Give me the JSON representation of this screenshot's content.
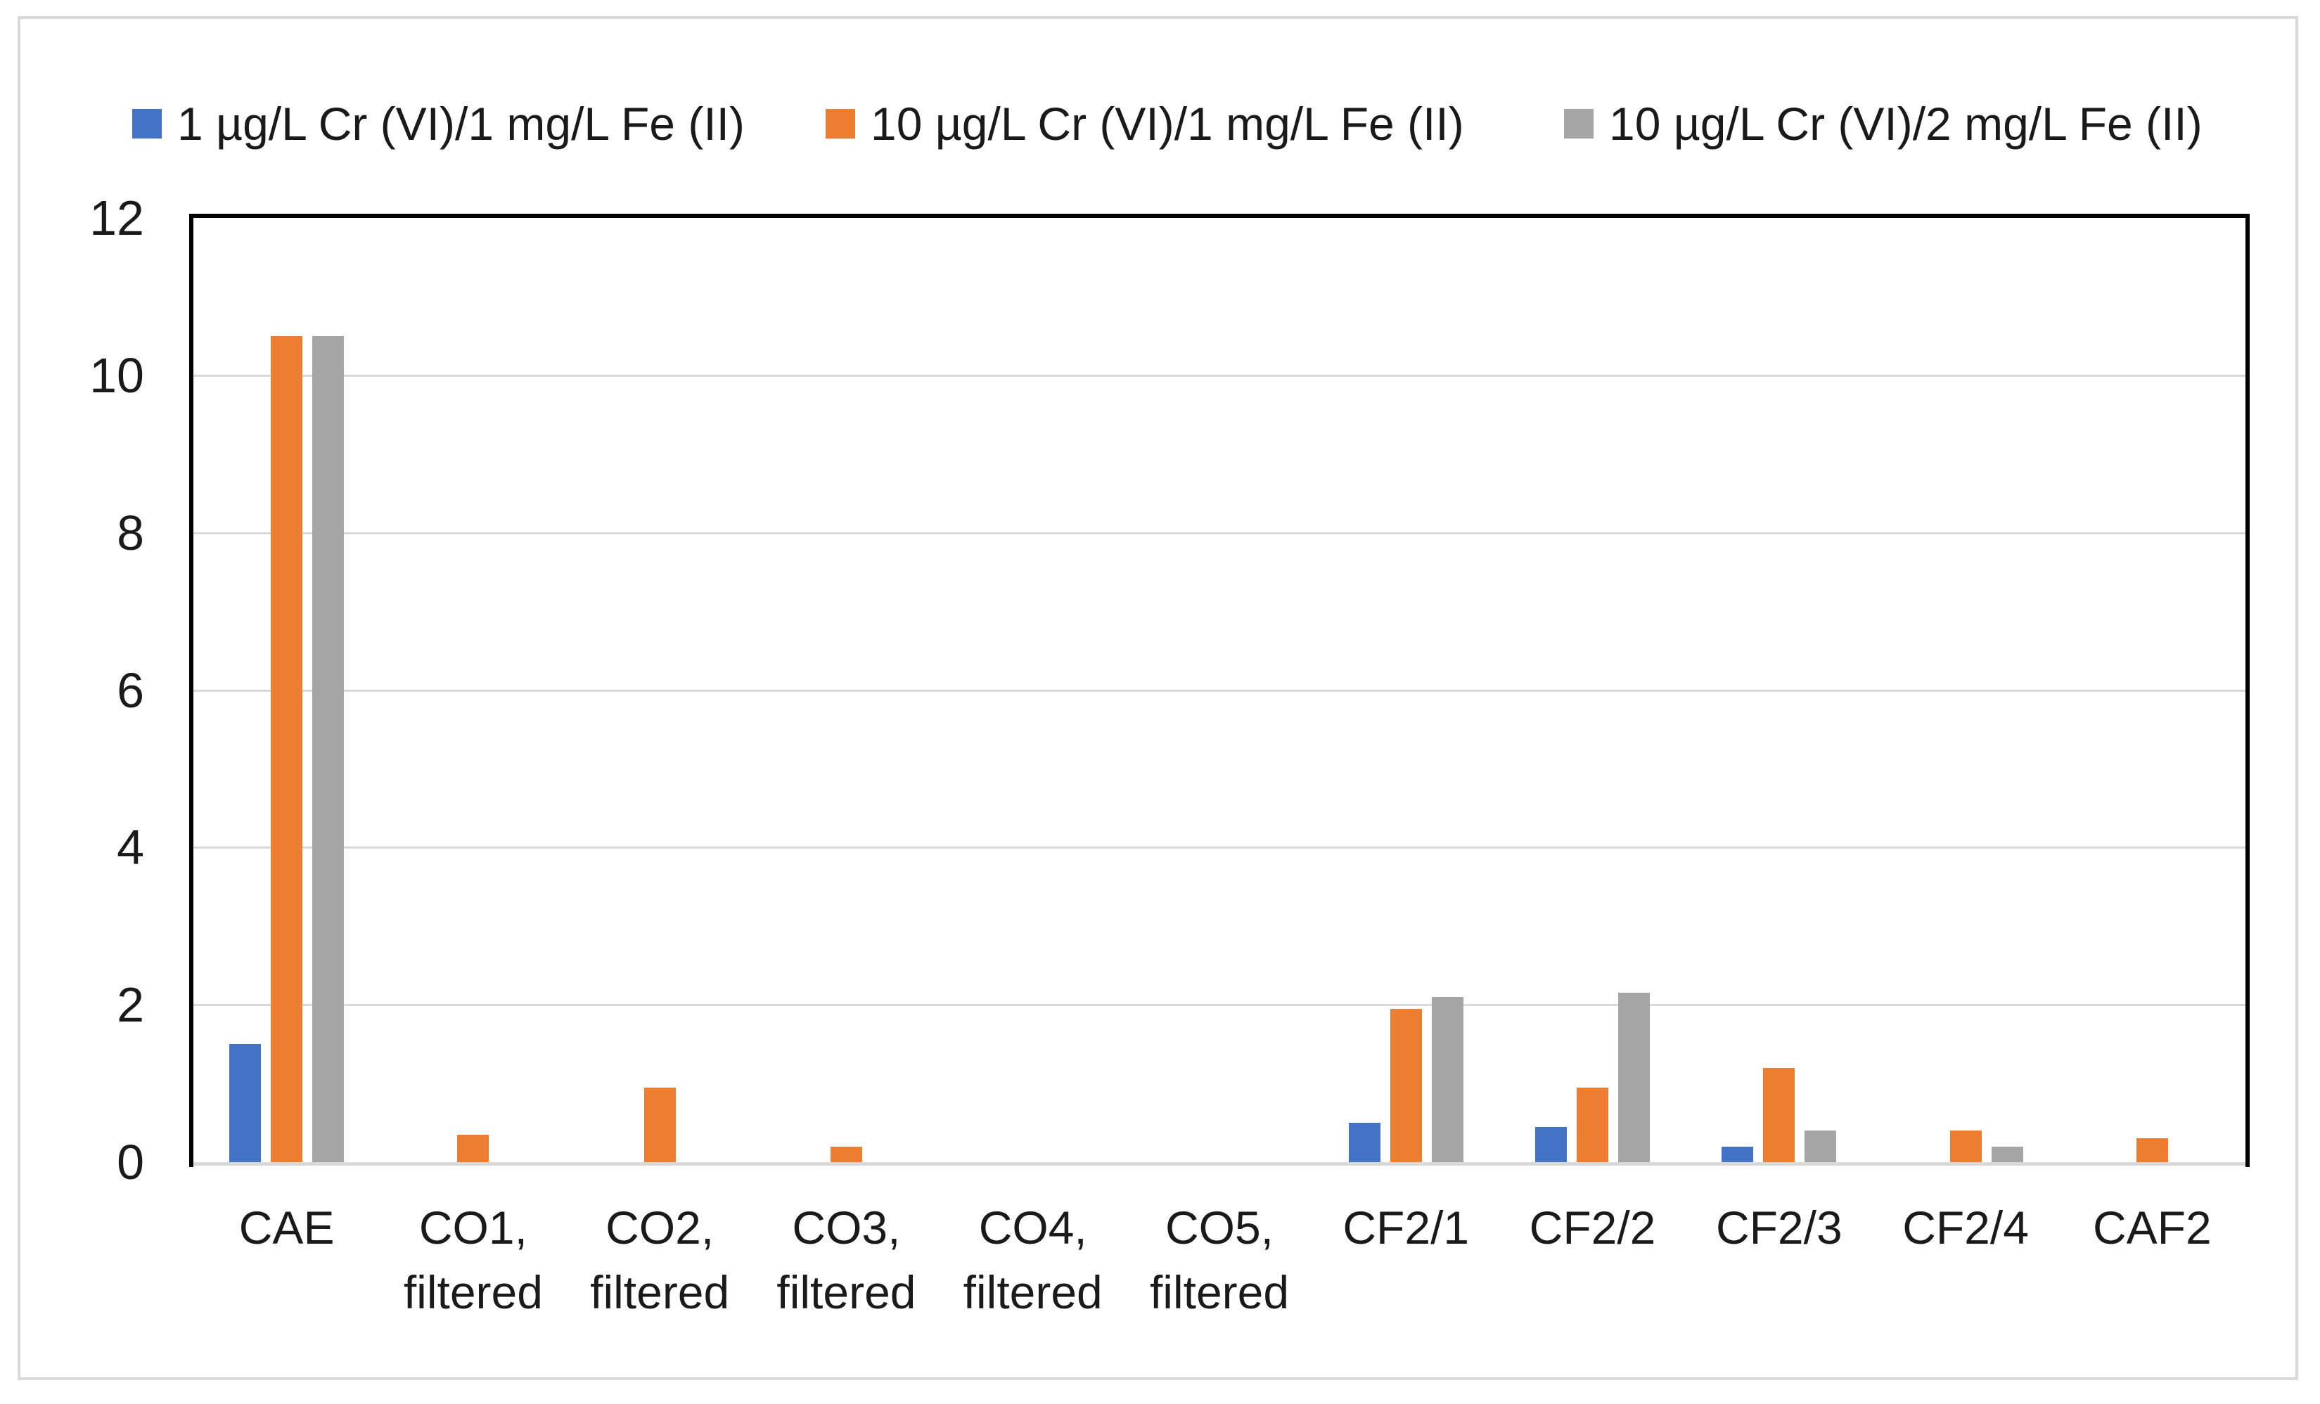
{
  "chart_data": {
    "type": "bar",
    "categories": [
      "CAE",
      "CO1,\nfiltered",
      "CO2,\nfiltered",
      "CO3,\nfiltered",
      "CO4,\nfiltered",
      "CO5,\nfiltered",
      "CF2/1",
      "CF2/2",
      "CF2/3",
      "CF2/4",
      "CAF2"
    ],
    "series": [
      {
        "name": "1 µg/L Cr (VI)/1 mg/L Fe (II)",
        "color": "#4472C4",
        "values": [
          1.5,
          0,
          0,
          0,
          0,
          0,
          0.5,
          0.45,
          0.2,
          0,
          0
        ]
      },
      {
        "name": "10 µg/L Cr (VI)/1 mg/L Fe (II)",
        "color": "#ED7D31",
        "values": [
          10.5,
          0.35,
          0.95,
          0.2,
          0,
          0,
          1.95,
          0.95,
          1.2,
          0.4,
          0.3
        ]
      },
      {
        "name": "10 µg/L Cr (VI)/2 mg/L Fe (II)",
        "color": "#A5A5A5",
        "values": [
          10.5,
          0,
          0,
          0,
          0,
          0,
          2.1,
          2.15,
          0.4,
          0.2,
          0
        ]
      }
    ],
    "xlabel": "",
    "ylabel": "",
    "ylim": [
      0,
      12
    ],
    "yticks": [
      0,
      2,
      4,
      6,
      8,
      10,
      12
    ],
    "grid": true,
    "legend_position": "top",
    "axis_style": {
      "gridline_color": "#D9D9D9",
      "baseline_color": "#D9D9D9",
      "plot_border_color": "#000000",
      "figure_border_color": "#D9D9D9",
      "text_color": "#1A1A1A"
    }
  }
}
